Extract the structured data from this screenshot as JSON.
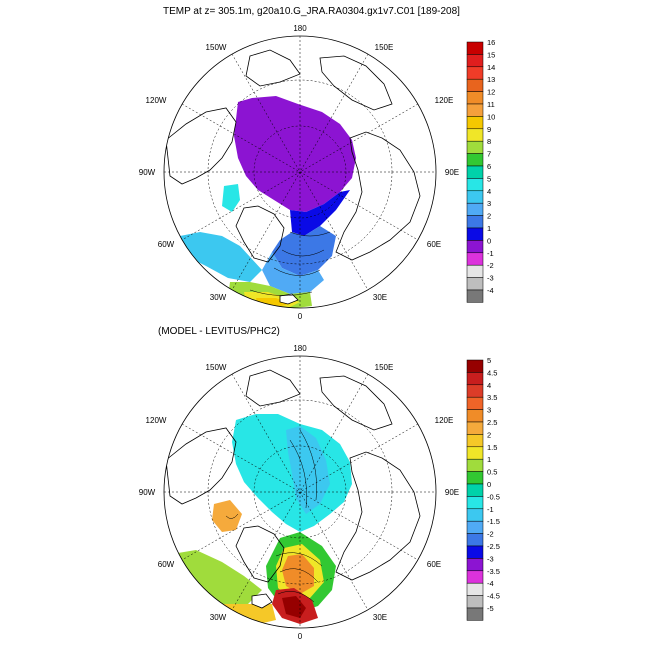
{
  "top_panel": {
    "title": "TEMP at z= 305.1m, g20a10.G_JRA.RA0304.gx1v7.C01 [189-208]",
    "colorbar": {
      "labels": [
        "16",
        "15",
        "14",
        "13",
        "12",
        "11",
        "10",
        "9",
        "8",
        "7",
        "6",
        "5",
        "4",
        "3",
        "2",
        "1",
        "0",
        "-1",
        "-2",
        "-3",
        "-4"
      ],
      "colors": [
        "#c80000",
        "#e01e1e",
        "#f03c28",
        "#e8641e",
        "#f08c28",
        "#f5a03c",
        "#f5c800",
        "#f0e628",
        "#a0dc3c",
        "#32c832",
        "#00d2aa",
        "#28e6e6",
        "#3cc8f0",
        "#50aaf5",
        "#3c78e6",
        "#0a0ae6",
        "#8c14d2",
        "#dc32dc",
        "#e6e6e6",
        "#bebebe",
        "#787878"
      ]
    }
  },
  "bottom_panel": {
    "title": "(MODEL - LEVITUS/PHC2)",
    "colorbar": {
      "labels": [
        "5",
        "4.5",
        "4",
        "3.5",
        "3",
        "2.5",
        "2",
        "1.5",
        "1",
        "0.5",
        "0",
        "-0.5",
        "-1",
        "-1.5",
        "-2",
        "-2.5",
        "-3",
        "-3.5",
        "-4",
        "-4.5",
        "-5"
      ],
      "colors": [
        "#960000",
        "#c81e1e",
        "#dc3c28",
        "#f06428",
        "#f08c28",
        "#f5aa3c",
        "#f5c828",
        "#f0e628",
        "#a0dc3c",
        "#32c832",
        "#00d2aa",
        "#28e6e6",
        "#3cc8f0",
        "#50aaf5",
        "#3c78e6",
        "#0a0ae6",
        "#8c14d2",
        "#dc32dc",
        "#e6e6e6",
        "#bebebe",
        "#787878"
      ]
    }
  },
  "longitude_labels": {
    "top": "180",
    "bottom": "0",
    "upper_left": "150W",
    "upper_right": "150E",
    "mid_upper_left": "120W",
    "mid_upper_right": "120E",
    "left": "90W",
    "right": "90E",
    "mid_lower_left": "60W",
    "mid_lower_right": "60E",
    "lower_left": "30W",
    "lower_right": "30E"
  }
}
